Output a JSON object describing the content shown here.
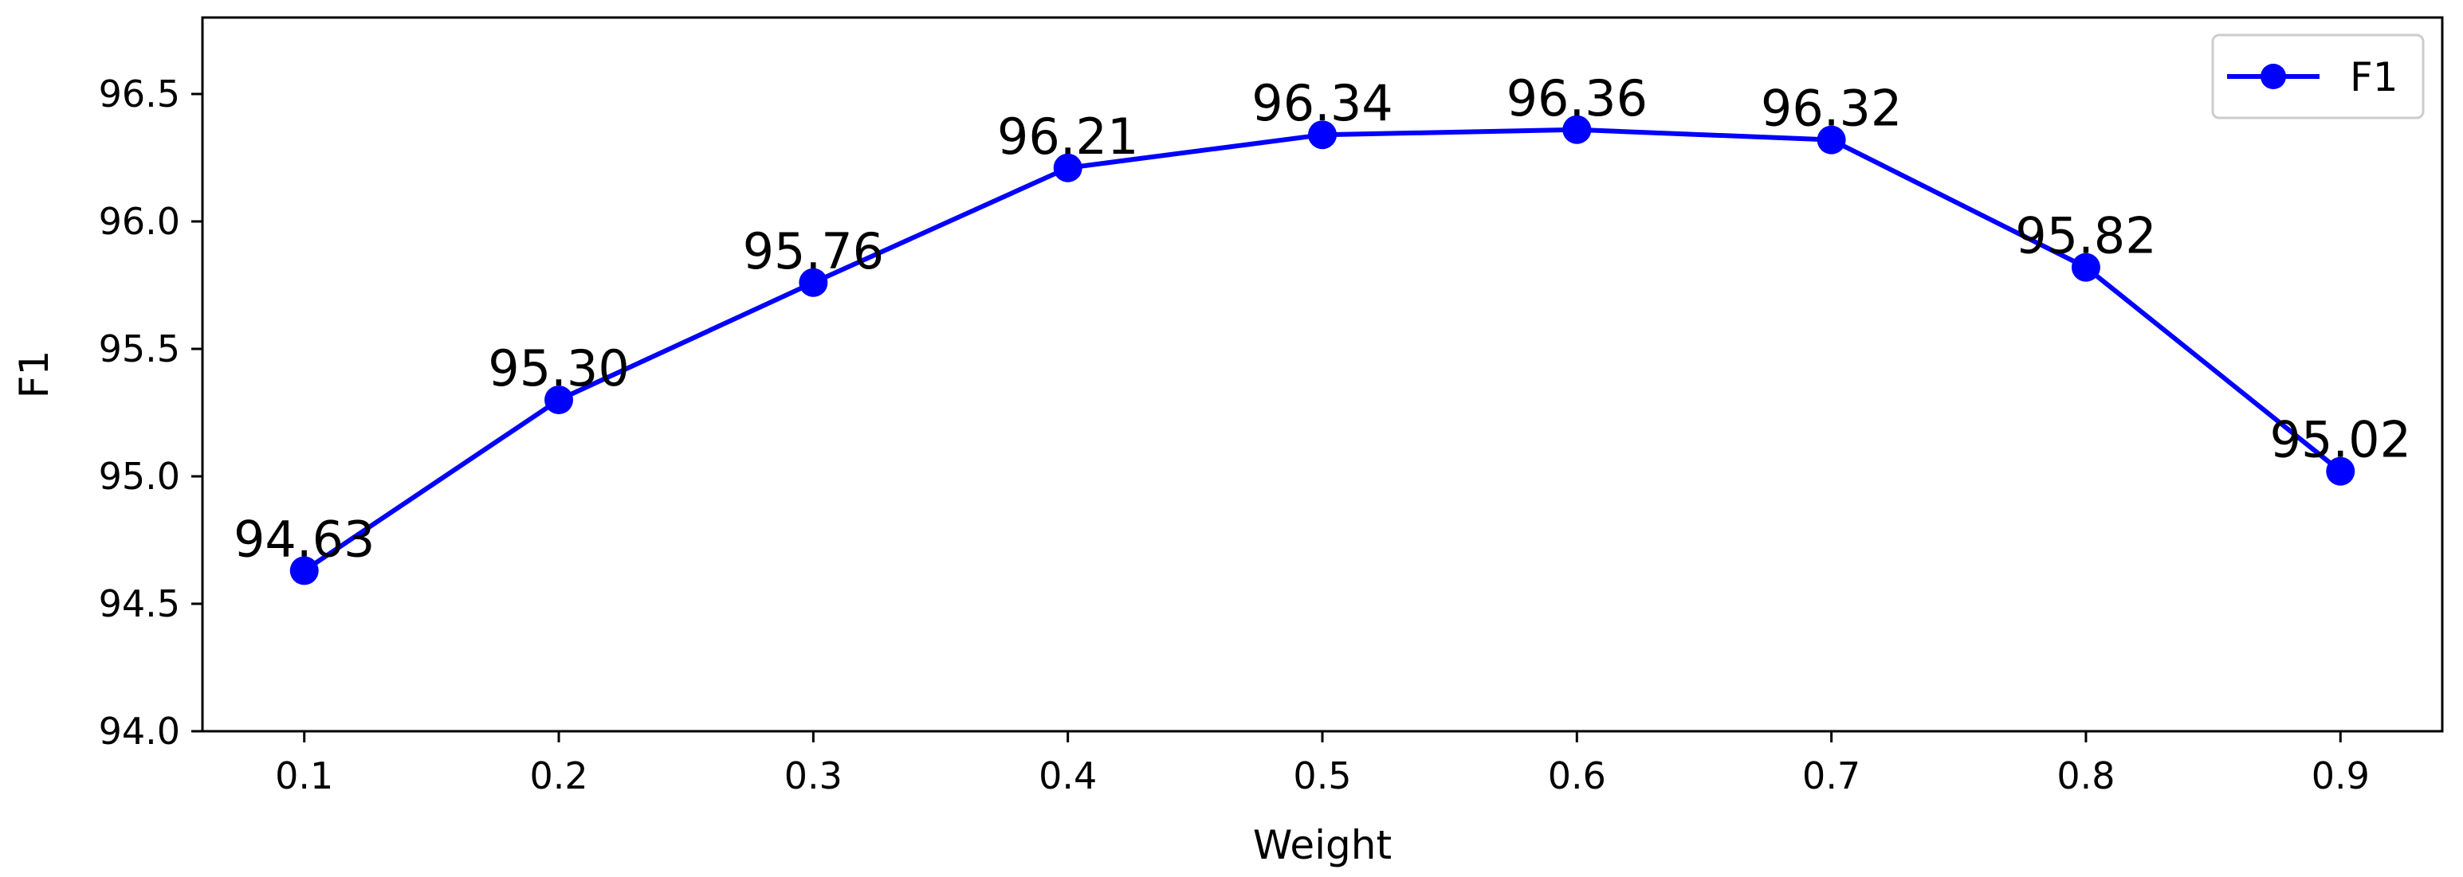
{
  "chart_data": {
    "type": "line",
    "title": "",
    "xlabel": "Weight",
    "ylabel": "F1",
    "x": [
      0.1,
      0.2,
      0.3,
      0.4,
      0.5,
      0.6,
      0.7,
      0.8,
      0.9
    ],
    "x_tick_labels": [
      "0.1",
      "0.2",
      "0.3",
      "0.4",
      "0.5",
      "0.6",
      "0.7",
      "0.8",
      "0.9"
    ],
    "y_ticks": [
      94.0,
      94.5,
      95.0,
      95.5,
      96.0,
      96.5
    ],
    "y_tick_labels": [
      "94.0",
      "94.5",
      "95.0",
      "95.5",
      "96.0",
      "96.5"
    ],
    "xlim": [
      0.06,
      0.94
    ],
    "ylim": [
      94.0,
      96.8
    ],
    "grid": false,
    "legend_position": "top-right",
    "series": [
      {
        "name": "F1",
        "color": "#0000ff",
        "marker": "circle",
        "values": [
          94.63,
          95.3,
          95.76,
          96.21,
          96.34,
          96.36,
          96.32,
          95.82,
          95.02
        ],
        "data_labels": [
          "94.63",
          "95.30",
          "95.76",
          "96.21",
          "96.34",
          "96.36",
          "96.32",
          "95.82",
          "95.02"
        ]
      }
    ]
  }
}
